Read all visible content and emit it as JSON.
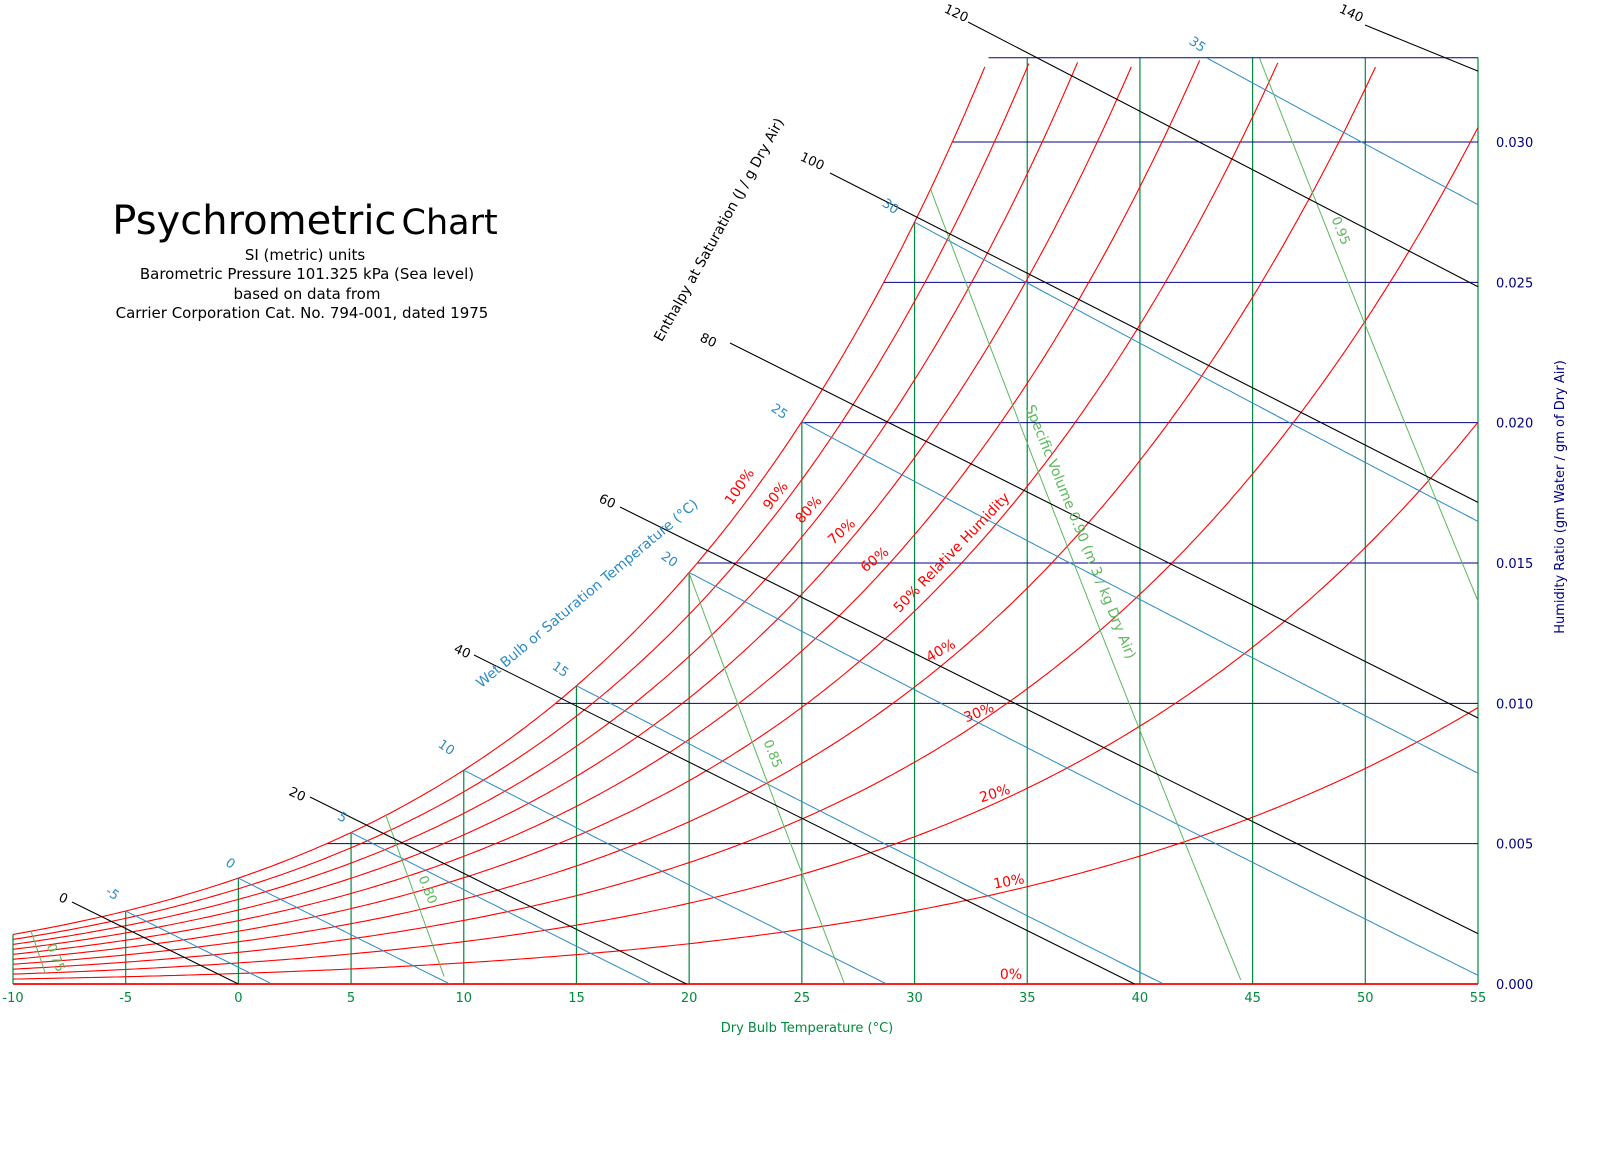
{
  "title": {
    "main": "Psychrometric",
    "main2": "Chart",
    "lines": [
      "SI (metric) units",
      "Barometric Pressure 101.325 kPa (Sea level)",
      "based on data from",
      "Carrier Corporation Cat. No. 794-001, dated 1975"
    ]
  },
  "chart_data": {
    "type": "line",
    "title": "Psychrometric Chart",
    "pressure_kpa": 101.325,
    "xlabel": "Dry Bulb Temperature (°C)",
    "ylabel": "Humidity Ratio (gm Water / gm of Dry Air)",
    "xlim": [
      -10,
      55
    ],
    "ylim": [
      0,
      0.033
    ],
    "x_ticks": [
      "-10",
      "-5",
      "0",
      "5",
      "10",
      "15",
      "20",
      "25",
      "30",
      "35",
      "40",
      "45",
      "50",
      "55"
    ],
    "y_ticks": [
      "0.000",
      "0.005",
      "0.010",
      "0.015",
      "0.020",
      "0.025",
      "0.030"
    ],
    "relative_humidity": {
      "values": [
        0,
        10,
        20,
        30,
        40,
        50,
        60,
        70,
        80,
        90,
        100
      ],
      "labels": [
        "0%",
        "10%",
        "20%",
        "30%",
        "40%",
        "50% Relative Humidity",
        "60%",
        "70%",
        "80%",
        "90%",
        "100%"
      ]
    },
    "wet_bulb": {
      "label": "Wet Bulb or Saturation Temperature (°C)",
      "values": [
        -5,
        0,
        5,
        10,
        15,
        20,
        25,
        30,
        35
      ],
      "labels": [
        "-5",
        "0",
        "5",
        "10",
        "15",
        "20",
        "25",
        "30",
        "35"
      ]
    },
    "enthalpy": {
      "label": "Enthalpy at Saturation (J / g Dry Air)",
      "values": [
        0,
        20,
        40,
        60,
        80,
        100,
        120,
        140
      ],
      "labels": [
        "0",
        "20",
        "40",
        "60",
        "80",
        "100",
        "120",
        "140"
      ]
    },
    "specific_volume": {
      "values": [
        0.75,
        0.8,
        0.85,
        0.9,
        0.95
      ],
      "labels": [
        "0.75",
        "0.80",
        "0.85",
        "Specific Volume 0.90 (m 3 / kg Dry Air)",
        "0.95"
      ]
    },
    "dry_bulb_lines": [
      -10,
      -5,
      0,
      5,
      10,
      15,
      20,
      25,
      30,
      35,
      40,
      45,
      50,
      55
    ],
    "humidity_ratio_lines": [
      0.005,
      0.01,
      0.015,
      0.02,
      0.025,
      0.03,
      0.033
    ],
    "colors": {
      "relative_humidity": "#ff0000",
      "wet_bulb": "#2c8ac4",
      "enthalpy": "#000000",
      "specific_volume": "#5cb85c",
      "dry_bulb": "#008a3e",
      "humidity_ratio": "#000080"
    }
  }
}
